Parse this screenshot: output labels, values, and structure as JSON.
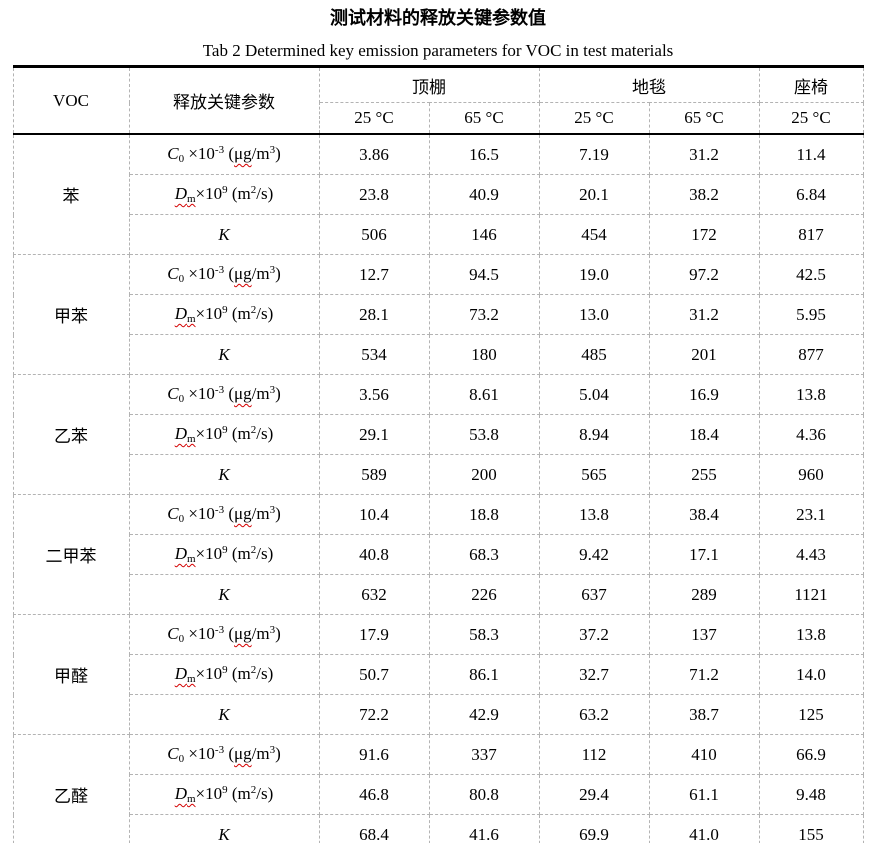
{
  "page": {
    "title": "测试材料的释放关键参数值",
    "subtitle": "Tab 2 Determined key emission parameters for VOC in test materials"
  },
  "colors": {
    "squiggle_red": "#d40000",
    "grid_dashed_gray": "#b3b3b3",
    "rule_black": "#000000"
  },
  "table": {
    "header": {
      "voc_label": "VOC",
      "param_label": "释放关键参数",
      "materials": [
        {
          "name": "顶棚"
        },
        {
          "name": "地毯"
        },
        {
          "name": "座椅"
        }
      ],
      "temps": [
        "25 °C",
        "65 °C",
        "25 °C",
        "65 °C",
        "25 °C"
      ]
    },
    "param_labels": [
      {
        "runs": [
          {
            "squiggle": false,
            "parts": [
              {
                "text": "C",
                "style": "italic"
              },
              {
                "text": "0",
                "style": "sub"
              },
              {
                "text": " ×10",
                "style": ""
              },
              {
                "text": "-3",
                "style": "sup"
              },
              {
                "text": " (",
                "style": ""
              }
            ]
          },
          {
            "squiggle": true,
            "parts": [
              {
                "text": "μg",
                "style": ""
              }
            ]
          },
          {
            "squiggle": false,
            "parts": [
              {
                "text": "/m",
                "style": ""
              },
              {
                "text": "3",
                "style": "sup"
              },
              {
                "text": ")",
                "style": ""
              }
            ]
          }
        ]
      },
      {
        "runs": [
          {
            "squiggle": true,
            "parts": [
              {
                "text": "D",
                "style": "italic"
              },
              {
                "text": "m",
                "style": "sub"
              }
            ]
          },
          {
            "squiggle": false,
            "parts": [
              {
                "text": "×10",
                "style": ""
              },
              {
                "text": "9",
                "style": "sup"
              },
              {
                "text": " (m",
                "style": ""
              },
              {
                "text": "2",
                "style": "sup"
              },
              {
                "text": "/s)",
                "style": ""
              }
            ]
          }
        ]
      },
      {
        "runs": [
          {
            "squiggle": false,
            "parts": [
              {
                "text": "K",
                "style": "italic"
              }
            ]
          }
        ]
      }
    ],
    "groups": [
      {
        "voc": "苯",
        "rows": [
          [
            "3.86",
            "16.5",
            "7.19",
            "31.2",
            "11.4"
          ],
          [
            "23.8",
            "40.9",
            "20.1",
            "38.2",
            "6.84"
          ],
          [
            "506",
            "146",
            "454",
            "172",
            "817"
          ]
        ]
      },
      {
        "voc": "甲苯",
        "rows": [
          [
            "12.7",
            "94.5",
            "19.0",
            "97.2",
            "42.5"
          ],
          [
            "28.1",
            "73.2",
            "13.0",
            "31.2",
            "5.95"
          ],
          [
            "534",
            "180",
            "485",
            "201",
            "877"
          ]
        ]
      },
      {
        "voc": "乙苯",
        "rows": [
          [
            "3.56",
            "8.61",
            "5.04",
            "16.9",
            "13.8"
          ],
          [
            "29.1",
            "53.8",
            "8.94",
            "18.4",
            "4.36"
          ],
          [
            "589",
            "200",
            "565",
            "255",
            "960"
          ]
        ]
      },
      {
        "voc": "二甲苯",
        "rows": [
          [
            "10.4",
            "18.8",
            "13.8",
            "38.4",
            "23.1"
          ],
          [
            "40.8",
            "68.3",
            "9.42",
            "17.1",
            "4.43"
          ],
          [
            "632",
            "226",
            "637",
            "289",
            "1121"
          ]
        ]
      },
      {
        "voc": "甲醛",
        "rows": [
          [
            "17.9",
            "58.3",
            "37.2",
            "137",
            "13.8"
          ],
          [
            "50.7",
            "86.1",
            "32.7",
            "71.2",
            "14.0"
          ],
          [
            "72.2",
            "42.9",
            "63.2",
            "38.7",
            "125"
          ]
        ]
      },
      {
        "voc": "乙醛",
        "rows": [
          [
            "91.6",
            "337",
            "112",
            "410",
            "66.9"
          ],
          [
            "46.8",
            "80.8",
            "29.4",
            "61.1",
            "9.48"
          ],
          [
            "68.4",
            "41.6",
            "69.9",
            "41.0",
            "155"
          ]
        ]
      }
    ]
  }
}
